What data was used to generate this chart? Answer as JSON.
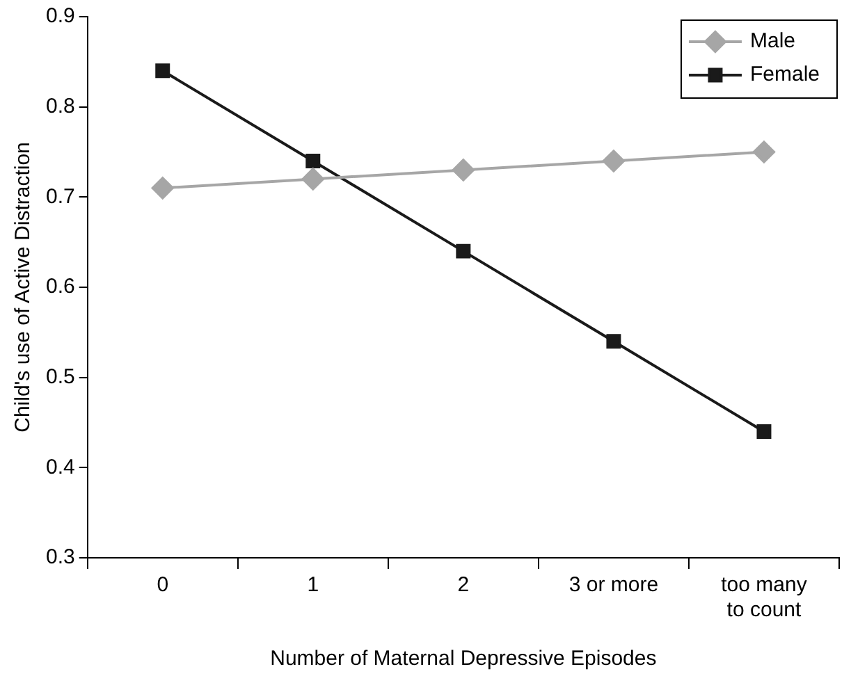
{
  "chart_data": {
    "type": "line",
    "xlabel": "Number of Maternal Depressive Episodes",
    "ylabel": "Child's use of Active Distraction",
    "categories": [
      "0",
      "1",
      "2",
      "3 or more",
      "too many to count"
    ],
    "series": [
      {
        "name": "Male",
        "color": "#a6a6a6",
        "marker": "diamond",
        "values": [
          0.71,
          0.72,
          0.73,
          0.74,
          0.75
        ]
      },
      {
        "name": "Female",
        "color": "#1a1a1a",
        "marker": "square",
        "values": [
          0.84,
          0.74,
          0.64,
          0.54,
          0.44
        ]
      }
    ],
    "ylim": [
      0.3,
      0.9
    ],
    "yticks": [
      0.3,
      0.4,
      0.5,
      0.6,
      0.7,
      0.8,
      0.9
    ],
    "grid": false,
    "legend": "top right",
    "line_style": "solid"
  }
}
